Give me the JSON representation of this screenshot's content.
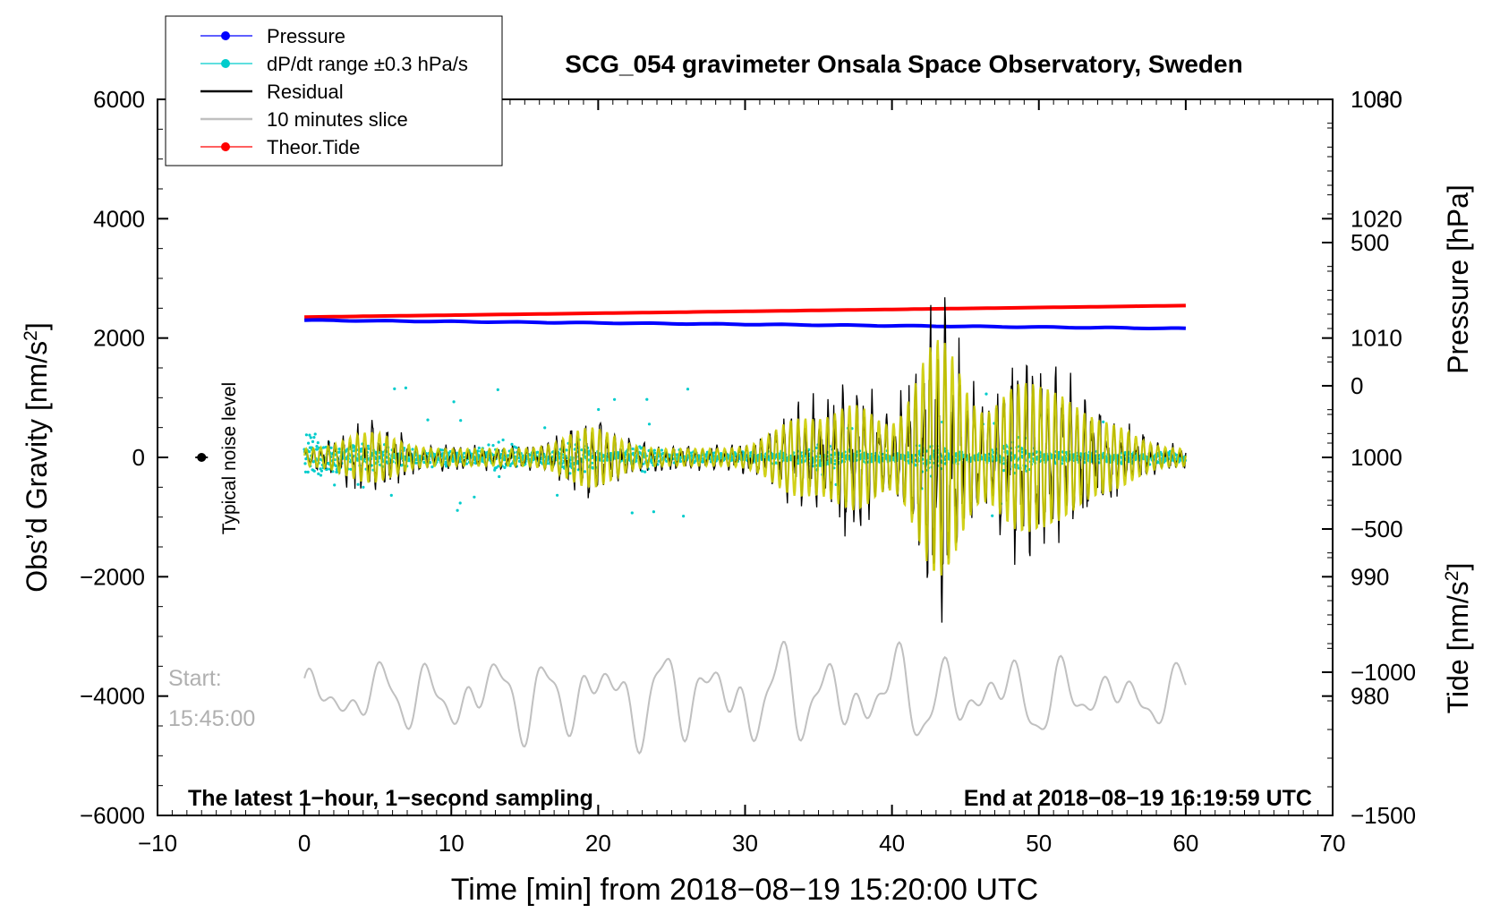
{
  "chart_data": {
    "type": "line",
    "title": "SCG_054 gravimeter Onsala Space Observatory, Sweden",
    "xlabel": "Time [min] from 2018−08−19 15:20:00 UTC",
    "xlim": [
      -10,
      70
    ],
    "x_ticks": [
      -10,
      0,
      10,
      20,
      30,
      40,
      50,
      60,
      70
    ],
    "x_tick_labels": [
      "−10",
      "0",
      "10",
      "20",
      "30",
      "40",
      "50",
      "60",
      "70"
    ],
    "y_left": {
      "label_prefix": "Obs’d Gravity [nm/s",
      "label_sup": "2",
      "label_suffix": "]",
      "lim": [
        -6000,
        6000
      ],
      "ticks": [
        -6000,
        -4000,
        -2000,
        0,
        2000,
        4000,
        6000
      ],
      "tick_labels": [
        "−6000",
        "−4000",
        "−2000",
        "0",
        "2000",
        "4000",
        "6000"
      ]
    },
    "y_right_pressure": {
      "label": "Pressure [hPa]",
      "lim": [
        970,
        1030
      ],
      "ticks": [
        980,
        990,
        1000,
        1010,
        1020,
        1030
      ],
      "tick_labels": [
        "980",
        "990",
        "1000",
        "1010",
        "1020",
        "1030"
      ]
    },
    "y_right_tide": {
      "label_prefix": "Tide [nm/s",
      "label_sup": "2",
      "label_suffix": "]",
      "lim": [
        -1500,
        1000
      ],
      "ticks": [
        -1500,
        -1000,
        -500,
        0,
        500,
        1000
      ],
      "tick_labels": [
        "−1500",
        "−1000",
        "−500",
        "0",
        "500",
        "1000"
      ]
    },
    "series": [
      {
        "name": "Pressure",
        "color": "#0000ff",
        "axis": "pressure",
        "start": 1011.5,
        "end": 1010.8,
        "x_range": [
          0,
          60
        ]
      },
      {
        "name": "dP/dt range ±0.3 hPa/s",
        "color": "#00cccc",
        "axis": "pressure",
        "center": 1000,
        "typical_spread": 1.0,
        "x_range": [
          0,
          60
        ]
      },
      {
        "name": "Residual",
        "color": "#000000",
        "axis": "gravity",
        "center": 0,
        "peak_amplitude": 2600,
        "peak_time": 43.2,
        "x_range": [
          0,
          60
        ]
      },
      {
        "name": "10 minutes slice",
        "color": "#c0c0c0",
        "axis": "gravity",
        "center": -4000,
        "amplitude": 1000,
        "x_range": [
          0,
          60
        ]
      },
      {
        "name": "Theor.Tide",
        "color": "#ff0000",
        "axis": "tide",
        "start": 240,
        "end": 280,
        "x_range": [
          0,
          60
        ]
      }
    ],
    "overlay_color": "#cccc00",
    "legend": {
      "placement": "top-left",
      "entries": [
        {
          "label": "Pressure",
          "color": "#0000ff",
          "style": "line-dot"
        },
        {
          "label": "dP/dt range ±0.3 hPa/s",
          "color": "#00cccc",
          "style": "line-dot"
        },
        {
          "label": "Residual",
          "color": "#000000",
          "style": "line"
        },
        {
          "label": "10 minutes slice",
          "color": "#c0c0c0",
          "style": "line"
        },
        {
          "label": "Theor.Tide",
          "color": "#ff0000",
          "style": "line-dot"
        }
      ]
    },
    "annotations": {
      "noise_label": "Typical noise level",
      "noise_point": {
        "x": -7,
        "y": 0
      },
      "start_label": "Start:",
      "start_time": "15:45:00",
      "bottom_left": "The latest 1−hour, 1−second sampling",
      "bottom_right": "End at 2018−08−19 16:19:59 UTC"
    }
  }
}
